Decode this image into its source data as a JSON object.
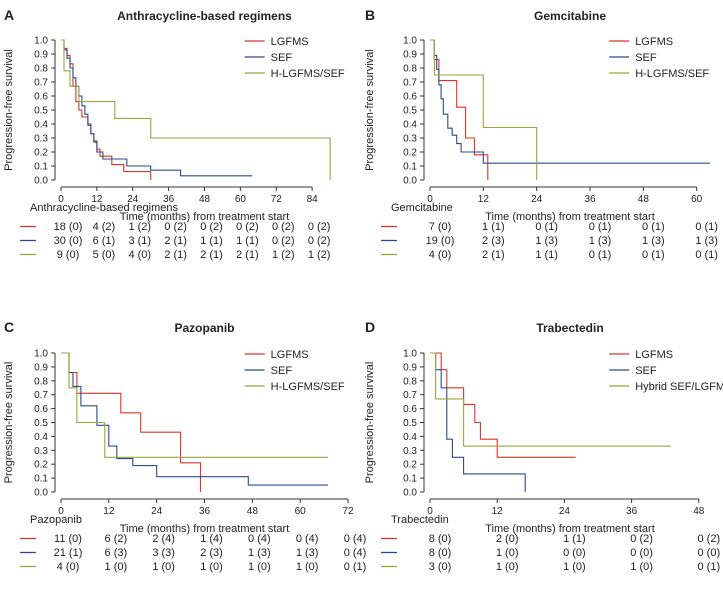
{
  "figure": {
    "xlabel": "Time (months) from treatment start",
    "ylabel": "Progression-free survival"
  },
  "chart_data": [
    {
      "type": "line",
      "panel_letter": "A",
      "title": "Anthracycline-based regimens",
      "xlabel": "Time (months) from treatment start",
      "ylabel": "Progression-free survival",
      "xlim": [
        0,
        96
      ],
      "ylim": [
        0,
        1
      ],
      "xticks": [
        0,
        12,
        24,
        36,
        48,
        60,
        72,
        84
      ],
      "yticks": [
        0.0,
        0.1,
        0.2,
        0.3,
        0.4,
        0.5,
        0.6,
        0.7,
        0.8,
        0.9,
        1.0
      ],
      "legend_position": "top-right",
      "risk_title": "Anthracycline-based regimens",
      "risk_times": [
        0,
        12,
        24,
        36,
        48,
        60,
        72,
        84
      ],
      "series": [
        {
          "name": "LGFMS",
          "color": "#d9352a",
          "steps": [
            [
              0,
              1.0
            ],
            [
              1,
              0.94
            ],
            [
              2,
              0.89
            ],
            [
              3,
              0.83
            ],
            [
              4,
              0.67
            ],
            [
              5,
              0.56
            ],
            [
              6,
              0.5
            ],
            [
              7,
              0.45
            ],
            [
              9,
              0.39
            ],
            [
              10,
              0.33
            ],
            [
              11,
              0.28
            ],
            [
              12,
              0.22
            ],
            [
              13,
              0.17
            ],
            [
              17,
              0.11
            ],
            [
              21,
              0.06
            ],
            [
              30,
              0.0
            ]
          ],
          "risk": [
            "18 (0)",
            "4 (2)",
            "1 (2)",
            "0 (2)",
            "0 (2)",
            "0 (2)",
            "0 (2)",
            "0 (2)"
          ]
        },
        {
          "name": "SEF",
          "color": "#2b4a8c",
          "steps": [
            [
              0,
              1.0
            ],
            [
              1,
              0.93
            ],
            [
              2,
              0.87
            ],
            [
              3,
              0.8
            ],
            [
              4,
              0.73
            ],
            [
              5,
              0.67
            ],
            [
              6,
              0.6
            ],
            [
              7,
              0.53
            ],
            [
              8,
              0.47
            ],
            [
              9,
              0.4
            ],
            [
              10,
              0.33
            ],
            [
              11,
              0.27
            ],
            [
              12,
              0.2
            ],
            [
              14,
              0.15
            ],
            [
              22,
              0.1
            ],
            [
              30,
              0.07
            ],
            [
              40,
              0.03
            ],
            [
              64,
              0.03
            ]
          ],
          "risk": [
            "30 (0)",
            "6 (1)",
            "3 (1)",
            "2 (1)",
            "1 (1)",
            "1 (1)",
            "0 (2)",
            "0 (2)"
          ]
        },
        {
          "name": "H-LGFMS/SEF",
          "color": "#9aa63c",
          "steps": [
            [
              0,
              1.0
            ],
            [
              1,
              0.78
            ],
            [
              3,
              0.67
            ],
            [
              6,
              0.56
            ],
            [
              18,
              0.44
            ],
            [
              30,
              0.3
            ],
            [
              90,
              0.3
            ],
            [
              90,
              0.0
            ]
          ],
          "risk": [
            "9 (0)",
            "5 (0)",
            "4 (0)",
            "2 (1)",
            "2 (1)",
            "2 (1)",
            "1 (2)",
            "1 (2)"
          ]
        }
      ]
    },
    {
      "type": "line",
      "panel_letter": "B",
      "title": "Gemcitabine",
      "xlabel": "Time (months) from treatment start",
      "ylabel": "Progression-free survival",
      "xlim": [
        0,
        63
      ],
      "ylim": [
        0,
        1
      ],
      "xticks": [
        0,
        12,
        24,
        36,
        48,
        60
      ],
      "yticks": [
        0.0,
        0.1,
        0.2,
        0.3,
        0.4,
        0.5,
        0.6,
        0.7,
        0.8,
        0.9,
        1.0
      ],
      "legend_position": "top-right",
      "risk_title": "Gemcitabine",
      "risk_times": [
        0,
        12,
        24,
        36,
        48,
        60
      ],
      "series": [
        {
          "name": "LGFMS",
          "color": "#d9352a",
          "steps": [
            [
              0,
              1.0
            ],
            [
              1,
              0.86
            ],
            [
              2,
              0.71
            ],
            [
              6,
              0.52
            ],
            [
              8,
              0.3
            ],
            [
              10,
              0.18
            ],
            [
              13,
              0.18
            ],
            [
              13,
              0.0
            ]
          ],
          "risk": [
            "7 (0)",
            "1 (1)",
            "0 (1)",
            "0 (1)",
            "0 (1)",
            "0 (1)"
          ]
        },
        {
          "name": "SEF",
          "color": "#2b4a8c",
          "steps": [
            [
              0,
              1.0
            ],
            [
              1,
              0.89
            ],
            [
              1.5,
              0.79
            ],
            [
              2,
              0.68
            ],
            [
              2.5,
              0.58
            ],
            [
              3,
              0.47
            ],
            [
              4,
              0.37
            ],
            [
              5,
              0.32
            ],
            [
              6,
              0.26
            ],
            [
              7,
              0.2
            ],
            [
              12,
              0.12
            ],
            [
              63,
              0.12
            ]
          ],
          "risk": [
            "19 (0)",
            "2 (3)",
            "1 (3)",
            "1 (3)",
            "1 (3)",
            "1 (3)"
          ]
        },
        {
          "name": "H-LGFMS/SEF",
          "color": "#9aa63c",
          "steps": [
            [
              0,
              1.0
            ],
            [
              1,
              0.75
            ],
            [
              12,
              0.375
            ],
            [
              24,
              0.375
            ],
            [
              24,
              0.0
            ]
          ],
          "risk": [
            "4 (0)",
            "2 (1)",
            "1 (1)",
            "0 (1)",
            "0 (1)",
            "0 (1)"
          ]
        }
      ]
    },
    {
      "type": "line",
      "panel_letter": "C",
      "title": "Pazopanib",
      "xlabel": "Time (months) from treatment start",
      "ylabel": "Progression-free survival",
      "xlim": [
        0,
        72
      ],
      "ylim": [
        0,
        1
      ],
      "xticks": [
        0,
        12,
        24,
        36,
        48,
        60,
        72
      ],
      "yticks": [
        0.0,
        0.1,
        0.2,
        0.3,
        0.4,
        0.5,
        0.6,
        0.7,
        0.8,
        0.9,
        1.0
      ],
      "legend_position": "top-right",
      "risk_title": "Pazopanib",
      "risk_times": [
        0,
        12,
        24,
        36,
        48,
        60,
        72
      ],
      "series": [
        {
          "name": "LGFMS",
          "color": "#d9352a",
          "steps": [
            [
              0,
              1.0
            ],
            [
              2,
              0.86
            ],
            [
              4,
              0.71
            ],
            [
              15,
              0.57
            ],
            [
              20,
              0.43
            ],
            [
              30,
              0.21
            ],
            [
              35,
              0.21
            ],
            [
              35,
              0.0
            ]
          ],
          "risk": [
            "11 (0)",
            "6 (2)",
            "2 (4)",
            "1 (4)",
            "0 (4)",
            "0 (4)",
            "0 (4)"
          ]
        },
        {
          "name": "SEF",
          "color": "#2b4a8c",
          "steps": [
            [
              0,
              1.0
            ],
            [
              2,
              0.86
            ],
            [
              3,
              0.76
            ],
            [
              5,
              0.62
            ],
            [
              9,
              0.48
            ],
            [
              12,
              0.33
            ],
            [
              14,
              0.24
            ],
            [
              18,
              0.19
            ],
            [
              24,
              0.11
            ],
            [
              47,
              0.05
            ],
            [
              67,
              0.05
            ]
          ],
          "risk": [
            "21 (1)",
            "6 (3)",
            "3 (3)",
            "2 (3)",
            "1 (3)",
            "1 (3)",
            "0 (4)"
          ]
        },
        {
          "name": "H-LGFMS/SEF",
          "color": "#9aa63c",
          "steps": [
            [
              0,
              1.0
            ],
            [
              2,
              0.75
            ],
            [
              4,
              0.5
            ],
            [
              11,
              0.25
            ],
            [
              67,
              0.25
            ]
          ],
          "risk": [
            "4 (0)",
            "1 (0)",
            "1 (0)",
            "1 (0)",
            "1 (0)",
            "1 (0)",
            "0 (1)"
          ]
        }
      ]
    },
    {
      "type": "line",
      "panel_letter": "D",
      "title": "Trabectedin",
      "xlabel": "Time (months) from treatment start",
      "ylabel": "Progression-free survival",
      "xlim": [
        0,
        50
      ],
      "ylim": [
        0,
        1
      ],
      "xticks": [
        0,
        12,
        24,
        36,
        48
      ],
      "yticks": [
        0.0,
        0.1,
        0.2,
        0.3,
        0.4,
        0.5,
        0.6,
        0.7,
        0.8,
        0.9,
        1.0
      ],
      "legend_position": "top-right",
      "risk_title": "Trabectedin",
      "risk_times": [
        0,
        12,
        24,
        36,
        48
      ],
      "series": [
        {
          "name": "LGFMS",
          "color": "#d9352a",
          "steps": [
            [
              0,
              1.0
            ],
            [
              2,
              0.88
            ],
            [
              3,
              0.75
            ],
            [
              6,
              0.63
            ],
            [
              8,
              0.5
            ],
            [
              9,
              0.38
            ],
            [
              12,
              0.25
            ],
            [
              26,
              0.25
            ]
          ],
          "risk": [
            "8 (0)",
            "2 (0)",
            "1 (1)",
            "0 (2)",
            "0 (2)"
          ]
        },
        {
          "name": "SEF",
          "color": "#2b4a8c",
          "steps": [
            [
              0,
              1.0
            ],
            [
              1,
              0.88
            ],
            [
              2,
              0.75
            ],
            [
              3,
              0.38
            ],
            [
              4,
              0.25
            ],
            [
              6,
              0.13
            ],
            [
              17,
              0.13
            ],
            [
              17,
              0.0
            ]
          ],
          "risk": [
            "8 (0)",
            "1 (0)",
            "0 (0)",
            "0 (0)",
            "0 (0)"
          ]
        },
        {
          "name": "Hybrid SEF/LGFMS",
          "color": "#9aa63c",
          "steps": [
            [
              0,
              1.0
            ],
            [
              1,
              0.67
            ],
            [
              6,
              0.33
            ],
            [
              43,
              0.33
            ]
          ],
          "risk": [
            "3 (0)",
            "1 (0)",
            "1 (0)",
            "1 (0)",
            "0 (1)"
          ]
        }
      ]
    }
  ]
}
